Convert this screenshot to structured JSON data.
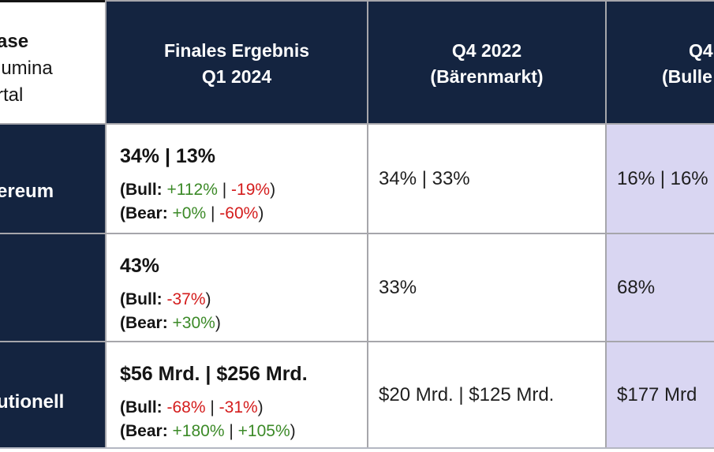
{
  "colors": {
    "navy": "#142440",
    "lavender": "#d9d6f2",
    "positive_green": "#3c8a28",
    "negative_red": "#d41c1c",
    "border_gray": "#a6a6ab",
    "text_dark": "#141414",
    "header_text": "#ffffff"
  },
  "table": {
    "corner": {
      "line1": "ase",
      "line2": "lumina",
      "line3": "rtal"
    },
    "col_headers": [
      {
        "line1": "Finales Ergebnis",
        "line2": "Q1 2024"
      },
      {
        "line1": "Q4 2022",
        "line2": "(Bärenmarkt)"
      },
      {
        "line1": "Q4",
        "line2": "(Bulle"
      }
    ],
    "rows": [
      {
        "header": "ereum",
        "final": {
          "main": "34% | 13%",
          "bull": {
            "label": "(Bull: ",
            "v1": "+112%",
            "v1_class": "pos",
            "sep": " | ",
            "v2": "-19%",
            "v2_class": "neg",
            "close": ")"
          },
          "bear": {
            "label": "(Bear: ",
            "v1": "+0%",
            "v1_class": "pos",
            "sep": " | ",
            "v2": "-60%",
            "v2_class": "neg",
            "close": ")"
          }
        },
        "q4_2022": "34% | 33%",
        "q4_bull": "16% | 16%"
      },
      {
        "header": "",
        "final": {
          "main": "43%",
          "bull": {
            "label": "(Bull: ",
            "v1": "-37%",
            "v1_class": "neg",
            "close": ")"
          },
          "bear": {
            "label": "(Bear: ",
            "v1": "+30%",
            "v1_class": "pos",
            "close": ")"
          }
        },
        "q4_2022": "33%",
        "q4_bull": "68%"
      },
      {
        "header": "utionell",
        "final": {
          "main": "$56 Mrd. | $256 Mrd.",
          "bull": {
            "label": "(Bull: ",
            "v1": "-68%",
            "v1_class": "neg",
            "sep": " | ",
            "v2": "-31%",
            "v2_class": "neg",
            "close": ")"
          },
          "bear": {
            "label": "(Bear: ",
            "v1": "+180%",
            "v1_class": "pos",
            "sep": " | ",
            "v2": "+105%",
            "v2_class": "pos",
            "close": ")"
          }
        },
        "q4_2022": "$20 Mrd. | $125 Mrd.",
        "q4_bull": "$177 Mrd"
      }
    ]
  }
}
